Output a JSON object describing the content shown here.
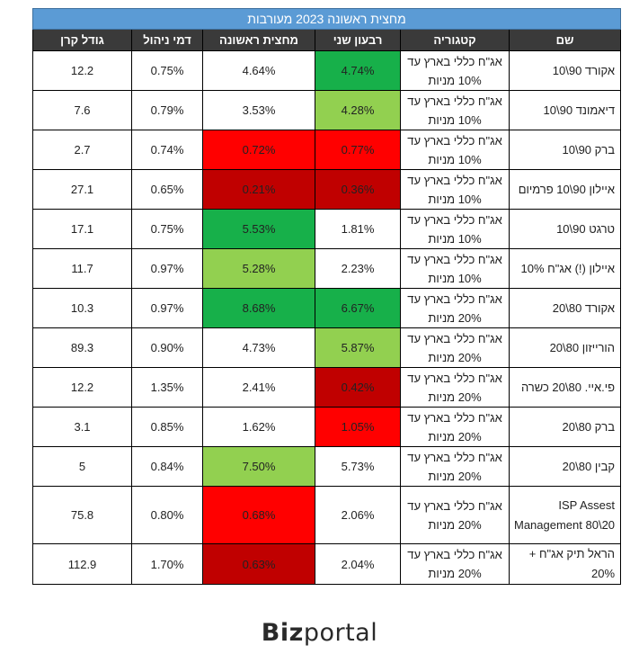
{
  "title": "מחצית ראשונה 2023 מעורבות",
  "headers": {
    "name": "שם",
    "category": "קטגוריה",
    "q2": "רבעון שני",
    "h1": "מחצית ראשונה",
    "fee": "דמי ניהול",
    "size": "גודל קרן"
  },
  "rows": [
    {
      "name": "אקורד 90\\10",
      "category": "אג\"ח כללי בארץ עד 10% מניות",
      "q2": "4.74%",
      "h1": "4.64%",
      "fee": "0.75%",
      "size": "12.2",
      "q2_bg": "#17b04a",
      "h1_bg": "#ffffff"
    },
    {
      "name": "דיאמונד 90\\10",
      "category": "אג\"ח כללי בארץ עד 10% מניות",
      "q2": "4.28%",
      "h1": "3.53%",
      "fee": "0.79%",
      "size": "7.6",
      "q2_bg": "#92d050",
      "h1_bg": "#ffffff"
    },
    {
      "name": "ברק 90\\10",
      "category": "אג\"ח כללי בארץ עד 10% מניות",
      "q2": "0.77%",
      "h1": "0.72%",
      "fee": "0.74%",
      "size": "2.7",
      "q2_bg": "#ff0000",
      "h1_bg": "#ff0000"
    },
    {
      "name": "איילון 90\\10 פרמיום",
      "category": "אג\"ח כללי בארץ עד 10% מניות",
      "q2": "0.36%",
      "h1": "0.21%",
      "fee": "0.65%",
      "size": "27.1",
      "q2_bg": "#c00000",
      "h1_bg": "#c00000"
    },
    {
      "name": "טרגט 90\\10",
      "category": "אג\"ח כללי בארץ עד 10% מניות",
      "q2": "1.81%",
      "h1": "5.53%",
      "fee": "0.75%",
      "size": "17.1",
      "q2_bg": "#ffffff",
      "h1_bg": "#17b04a"
    },
    {
      "name": "איילון (!) אג\"ח 10%",
      "category": "אג\"ח כללי בארץ עד 10% מניות",
      "q2": "2.23%",
      "h1": "5.28%",
      "fee": "0.97%",
      "size": "11.7",
      "q2_bg": "#ffffff",
      "h1_bg": "#92d050"
    },
    {
      "name": "אקורד 80\\20",
      "category": "אג\"ח כללי בארץ עד 20% מניות",
      "q2": "6.67%",
      "h1": "8.68%",
      "fee": "0.97%",
      "size": "10.3",
      "q2_bg": "#17b04a",
      "h1_bg": "#17b04a"
    },
    {
      "name": "הורייזון 80\\20",
      "category": "אג\"ח כללי בארץ עד 20% מניות",
      "q2": "5.87%",
      "h1": "4.73%",
      "fee": "0.90%",
      "size": "89.3",
      "q2_bg": "#92d050",
      "h1_bg": "#ffffff"
    },
    {
      "name": "פי.איי. 80\\20 כשרה",
      "category": "אג\"ח כללי בארץ עד 20% מניות",
      "q2": "0.42%",
      "h1": "2.41%",
      "fee": "1.35%",
      "size": "12.2",
      "q2_bg": "#c00000",
      "h1_bg": "#ffffff"
    },
    {
      "name": "ברק 80\\20",
      "category": "אג\"ח כללי בארץ עד 20% מניות",
      "q2": "1.05%",
      "h1": "1.62%",
      "fee": "0.85%",
      "size": "3.1",
      "q2_bg": "#ff0000",
      "h1_bg": "#ffffff"
    },
    {
      "name": "קבין 80\\20",
      "category": "אג\"ח כללי בארץ עד 20% מניות",
      "q2": "5.73%",
      "h1": "7.50%",
      "fee": "0.84%",
      "size": "5",
      "q2_bg": "#ffffff",
      "h1_bg": "#92d050"
    },
    {
      "name": "ISP Assest Management 80\\20",
      "category": "אג\"ח כללי בארץ עד 20% מניות",
      "q2": "2.06%",
      "h1": "0.68%",
      "fee": "0.80%",
      "size": "75.8",
      "q2_bg": "#ffffff",
      "h1_bg": "#ff0000",
      "tall": true
    },
    {
      "name": "הראל תיק אג\"ח + 20%",
      "category": "אג\"ח כללי בארץ עד 20% מניות",
      "q2": "2.04%",
      "h1": "0.63%",
      "fee": "1.70%",
      "size": "112.9",
      "q2_bg": "#ffffff",
      "h1_bg": "#c00000"
    }
  ],
  "logo": {
    "bold": "Biz",
    "regular": "portal"
  }
}
